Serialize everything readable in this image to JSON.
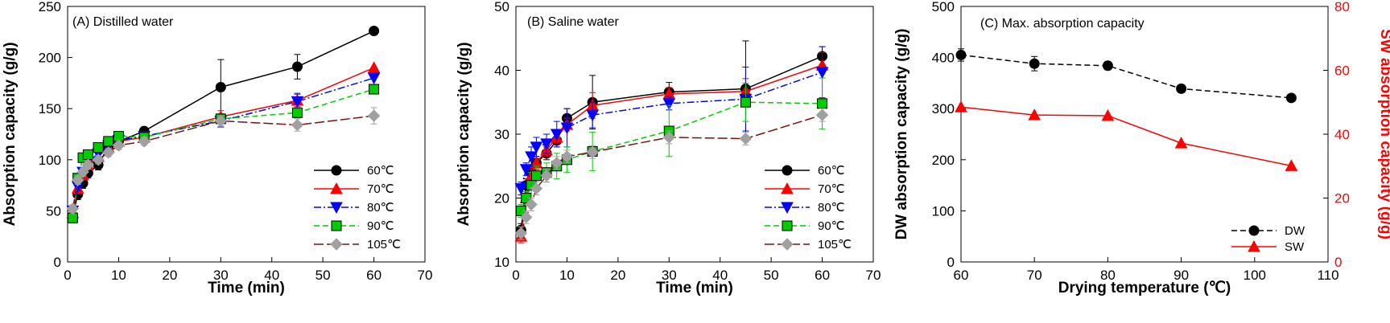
{
  "chart_data": [
    {
      "type": "line",
      "title": "(A) Distilled water",
      "xlabel": "Time (min)",
      "ylabel": "Absorption capacity (g/g)",
      "xlim": [
        0,
        70
      ],
      "ylim": [
        0,
        250
      ],
      "xticks": [
        0,
        10,
        20,
        30,
        40,
        50,
        60,
        70
      ],
      "yticks": [
        0,
        50,
        100,
        150,
        200,
        250
      ],
      "legend_position": "right",
      "series": [
        {
          "name": "60℃",
          "color": "#000000",
          "marker": "circle",
          "dash": "solid",
          "x": [
            1,
            2,
            3,
            4,
            6,
            8,
            10,
            15,
            30,
            45,
            60
          ],
          "y": [
            45,
            66,
            77,
            87,
            95,
            113,
            118,
            128,
            171,
            191,
            226
          ],
          "err": [
            6,
            5,
            5,
            5,
            5,
            5,
            4,
            4,
            27,
            12,
            0
          ]
        },
        {
          "name": "70℃",
          "color": "#ff0000",
          "marker": "triangle",
          "dash": "solid",
          "x": [
            1,
            2,
            3,
            4,
            6,
            8,
            10,
            15,
            30,
            45,
            60
          ],
          "y": [
            48,
            72,
            85,
            95,
            103,
            112,
            118,
            122,
            142,
            158,
            190
          ],
          "err": [
            5,
            5,
            4,
            4,
            4,
            4,
            4,
            4,
            6,
            6,
            0
          ]
        },
        {
          "name": "80℃",
          "color": "#0000ff",
          "marker": "triangle-down",
          "dash": "dashdot",
          "x": [
            1,
            2,
            3,
            4,
            6,
            8,
            10,
            15,
            30,
            45,
            60
          ],
          "y": [
            50,
            74,
            88,
            98,
            106,
            114,
            119,
            123,
            138,
            157,
            180
          ],
          "err": [
            5,
            4,
            4,
            4,
            4,
            4,
            4,
            4,
            6,
            8,
            0
          ]
        },
        {
          "name": "90℃",
          "color": "#00cc00",
          "marker": "square",
          "dash": "dashed",
          "x": [
            1,
            2,
            3,
            4,
            6,
            8,
            10,
            15,
            30,
            45,
            60
          ],
          "y": [
            43,
            82,
            102,
            105,
            112,
            118,
            123,
            122,
            140,
            146,
            169
          ],
          "err": [
            5,
            4,
            4,
            4,
            4,
            4,
            4,
            4,
            5,
            5,
            0
          ]
        },
        {
          "name": "105℃",
          "color": "#a0a0a0",
          "line_color": "#7a1010",
          "marker": "diamond",
          "dash": "longdash",
          "x": [
            1,
            2,
            3,
            4,
            6,
            8,
            10,
            15,
            30,
            45,
            60
          ],
          "y": [
            52,
            80,
            88,
            95,
            100,
            107,
            114,
            118,
            138,
            134,
            143
          ],
          "err": [
            4,
            4,
            4,
            4,
            4,
            4,
            4,
            4,
            5,
            6,
            8
          ]
        }
      ]
    },
    {
      "type": "line",
      "title": "(B) Saline water",
      "xlabel": "Time (min)",
      "ylabel": "Absorption capacity (g/g)",
      "xlim": [
        0,
        70
      ],
      "ylim": [
        10,
        50
      ],
      "xticks": [
        0,
        10,
        20,
        30,
        40,
        50,
        60,
        70
      ],
      "yticks": [
        10,
        20,
        30,
        40,
        50
      ],
      "legend_position": "right",
      "series": [
        {
          "name": "60℃",
          "color": "#000000",
          "marker": "circle",
          "dash": "solid",
          "x": [
            1,
            2,
            3,
            4,
            6,
            8,
            10,
            15,
            30,
            45,
            60
          ],
          "y": [
            15,
            22,
            24,
            25.5,
            27,
            29,
            32.5,
            35,
            36.6,
            37.1,
            42.2
          ],
          "err": [
            1,
            1,
            1,
            1,
            1,
            1,
            1.5,
            4.2,
            1.5,
            7.5,
            1.5
          ]
        },
        {
          "name": "70℃",
          "color": "#ff0000",
          "marker": "triangle",
          "dash": "solid",
          "x": [
            1,
            2,
            3,
            4,
            6,
            8,
            10,
            15,
            30,
            45,
            60
          ],
          "y": [
            14,
            20,
            23.5,
            25.5,
            27.5,
            29.5,
            31.5,
            34.5,
            36.3,
            36.7,
            40.8
          ],
          "err": [
            1,
            1,
            1,
            1,
            1,
            1,
            1,
            2,
            1,
            2,
            2
          ]
        },
        {
          "name": "80℃",
          "color": "#0000ff",
          "marker": "triangle-down",
          "dash": "dashdot",
          "x": [
            1,
            2,
            3,
            4,
            6,
            8,
            10,
            15,
            30,
            45,
            60
          ],
          "y": [
            21.5,
            24.5,
            26.5,
            28,
            28.5,
            30,
            31,
            33,
            34.8,
            35.5,
            39.7
          ],
          "err": [
            1,
            1,
            1.5,
            1.5,
            1.5,
            2,
            3,
            2,
            1,
            5,
            4
          ]
        },
        {
          "name": "90℃",
          "color": "#00cc00",
          "marker": "square",
          "dash": "dashed",
          "x": [
            1,
            2,
            3,
            4,
            6,
            8,
            10,
            15,
            30,
            45,
            60
          ],
          "y": [
            18,
            20,
            22,
            23.5,
            24,
            25,
            26,
            27.3,
            30.5,
            35,
            34.8
          ],
          "err": [
            1,
            1,
            2,
            1.5,
            1.5,
            2,
            2,
            3,
            4,
            3,
            4
          ]
        },
        {
          "name": "105℃",
          "color": "#a0a0a0",
          "line_color": "#7a1010",
          "marker": "diamond",
          "dash": "longdash",
          "x": [
            1,
            2,
            3,
            4,
            6,
            8,
            10,
            15,
            30,
            45,
            60
          ],
          "y": [
            14.5,
            17,
            19,
            21.5,
            23.5,
            25.5,
            26.5,
            27.2,
            29.5,
            29.3,
            33
          ],
          "err": [
            1,
            1,
            1,
            1,
            1,
            1,
            1,
            1,
            1,
            1,
            1
          ]
        }
      ]
    },
    {
      "type": "line",
      "title": "(C) Max. absorption capacity",
      "xlabel": "Drying temperature (℃)",
      "ylabel": "DW absorption capacity (g/g)",
      "y2label": "SW absorption capacity (g/g)",
      "xlim": [
        60,
        110
      ],
      "ylim": [
        0,
        500
      ],
      "y2lim": [
        0,
        80
      ],
      "xticks": [
        60,
        70,
        80,
        90,
        100,
        110
      ],
      "yticks": [
        0,
        100,
        200,
        300,
        400,
        500
      ],
      "y2ticks": [
        0,
        20,
        40,
        60,
        80
      ],
      "legend_position": "bottom-right",
      "series": [
        {
          "name": "DW",
          "axis": "left",
          "color": "#000000",
          "marker": "circle",
          "dash": "dashed",
          "x": [
            60,
            70,
            80,
            90,
            105
          ],
          "y": [
            405,
            388,
            384,
            339,
            321
          ],
          "err": [
            12,
            14,
            8,
            6,
            5
          ]
        },
        {
          "name": "SW",
          "axis": "right",
          "color": "#ff0000",
          "marker": "triangle",
          "dash": "solid",
          "x": [
            60,
            70,
            80,
            90,
            105
          ],
          "y": [
            48.5,
            46,
            45.8,
            37.2,
            30.1
          ],
          "err": [
            0,
            0,
            0,
            0,
            0
          ]
        }
      ]
    }
  ]
}
